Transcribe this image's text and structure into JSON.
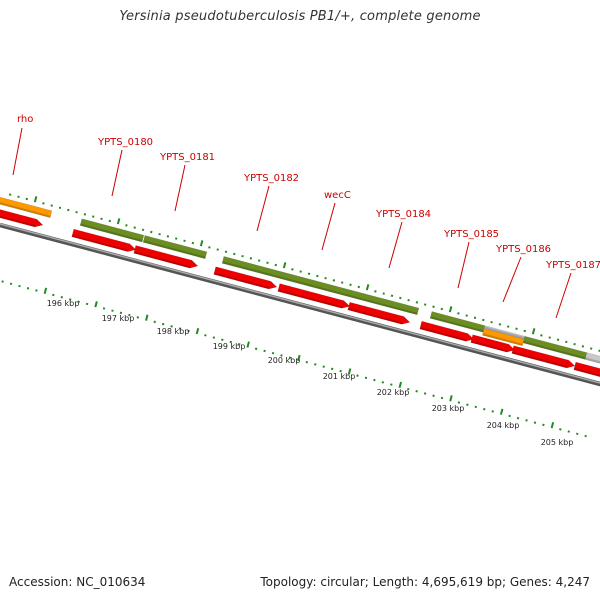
{
  "title": "Yersinia pseudotuberculosis PB1/+, complete genome",
  "footer": {
    "accession": "Accession: NC_010634",
    "summary": "Topology: circular; Length: 4,695,619 bp; Genes: 4,247"
  },
  "colors": {
    "cds": "#ee0000",
    "gene": "#6b8e23",
    "rna": "#ff9900",
    "misc": "#c8c8c8",
    "backbone": "#777777",
    "label": "#cc0000",
    "tick": "#228b22"
  },
  "gene_labels": [
    "rho",
    "YPTS_0180",
    "YPTS_0181",
    "YPTS_0182",
    "wecC",
    "YPTS_0184",
    "YPTS_0185",
    "YPTS_0186",
    "YPTS_0187"
  ],
  "kbp_labels": [
    "196 kbp",
    "197 kbp",
    "198 kbp",
    "199 kbp",
    "200 kbp",
    "201 kbp",
    "202 kbp",
    "203 kbp",
    "204 kbp",
    "205 kbp"
  ]
}
